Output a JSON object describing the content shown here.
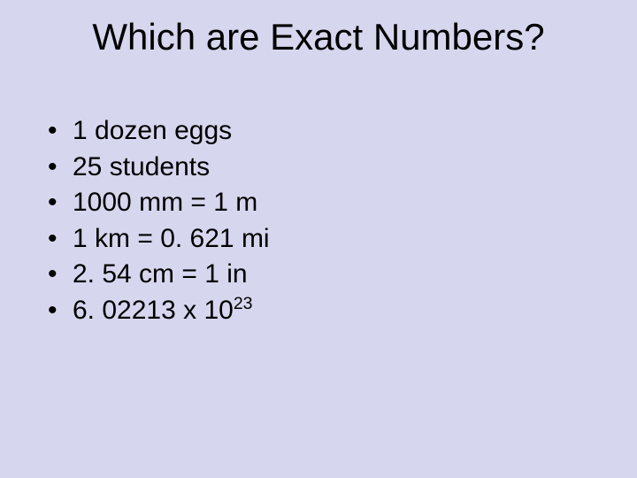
{
  "slide": {
    "background_color": "#d6d6ee",
    "text_color": "#000000",
    "title": "Which are Exact Numbers?",
    "title_fontsize": 42,
    "bullet_fontsize": 30,
    "bullet_char": "•",
    "items": [
      {
        "text": "1 dozen eggs"
      },
      {
        "text": "25 students"
      },
      {
        "text": "1000 mm = 1 m"
      },
      {
        "text": "1 km = 0. 621 mi"
      },
      {
        "text": "2. 54 cm = 1 in"
      },
      {
        "text": "6. 02213 x 10",
        "superscript": "23"
      }
    ]
  }
}
